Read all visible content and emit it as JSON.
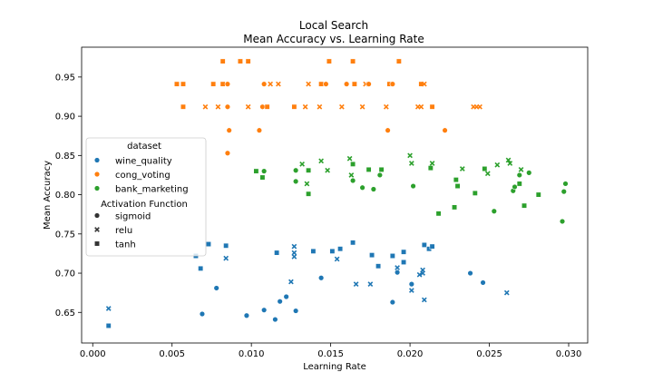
{
  "chart_data": {
    "type": "scatter",
    "title": "Local Search",
    "subtitle": "Mean Accuracy vs. Learning Rate",
    "xlabel": "Learning Rate",
    "ylabel": "Mean Accuracy",
    "xlim": [
      -0.0007,
      0.0312
    ],
    "ylim": [
      0.611,
      0.988
    ],
    "xticks": [
      0.0,
      0.005,
      0.01,
      0.015,
      0.02,
      0.025,
      0.03
    ],
    "xtick_labels": [
      "0.000",
      "0.005",
      "0.010",
      "0.015",
      "0.020",
      "0.025",
      "0.030"
    ],
    "yticks": [
      0.65,
      0.7,
      0.75,
      0.8,
      0.85,
      0.9,
      0.95
    ],
    "ytick_labels": [
      "0.65",
      "0.70",
      "0.75",
      "0.80",
      "0.85",
      "0.90",
      "0.95"
    ],
    "grid": false,
    "legend": {
      "placement": "center-left",
      "hue_title": "dataset",
      "hue_entries": [
        {
          "label": "wine_quality",
          "color": "#1f77b4"
        },
        {
          "label": "cong_voting",
          "color": "#ff7f0e"
        },
        {
          "label": "bank_marketing",
          "color": "#2ca02c"
        }
      ],
      "style_title": "Activation Function",
      "style_entries": [
        {
          "label": "sigmoid",
          "marker": "circle"
        },
        {
          "label": "relu",
          "marker": "x"
        },
        {
          "label": "tanh",
          "marker": "square"
        }
      ]
    },
    "series": [
      {
        "name": "wine_quality",
        "color": "#1f77b4",
        "points": [
          {
            "x": 0.001,
            "y": 0.633,
            "m": "tanh"
          },
          {
            "x": 0.001,
            "y": 0.655,
            "m": "relu"
          },
          {
            "x": 0.0065,
            "y": 0.722,
            "m": "tanh"
          },
          {
            "x": 0.0068,
            "y": 0.706,
            "m": "tanh"
          },
          {
            "x": 0.0069,
            "y": 0.648,
            "m": "sigmoid"
          },
          {
            "x": 0.0073,
            "y": 0.737,
            "m": "tanh"
          },
          {
            "x": 0.0078,
            "y": 0.681,
            "m": "sigmoid"
          },
          {
            "x": 0.0084,
            "y": 0.735,
            "m": "tanh"
          },
          {
            "x": 0.0084,
            "y": 0.719,
            "m": "relu"
          },
          {
            "x": 0.0097,
            "y": 0.646,
            "m": "sigmoid"
          },
          {
            "x": 0.0108,
            "y": 0.653,
            "m": "sigmoid"
          },
          {
            "x": 0.0115,
            "y": 0.641,
            "m": "sigmoid"
          },
          {
            "x": 0.0116,
            "y": 0.726,
            "m": "tanh"
          },
          {
            "x": 0.0118,
            "y": 0.664,
            "m": "sigmoid"
          },
          {
            "x": 0.0122,
            "y": 0.67,
            "m": "sigmoid"
          },
          {
            "x": 0.0125,
            "y": 0.689,
            "m": "relu"
          },
          {
            "x": 0.0127,
            "y": 0.734,
            "m": "relu"
          },
          {
            "x": 0.0127,
            "y": 0.726,
            "m": "relu"
          },
          {
            "x": 0.0127,
            "y": 0.721,
            "m": "relu"
          },
          {
            "x": 0.0128,
            "y": 0.652,
            "m": "sigmoid"
          },
          {
            "x": 0.0139,
            "y": 0.728,
            "m": "tanh"
          },
          {
            "x": 0.0144,
            "y": 0.694,
            "m": "sigmoid"
          },
          {
            "x": 0.0151,
            "y": 0.728,
            "m": "tanh"
          },
          {
            "x": 0.0154,
            "y": 0.718,
            "m": "relu"
          },
          {
            "x": 0.0156,
            "y": 0.731,
            "m": "tanh"
          },
          {
            "x": 0.0164,
            "y": 0.739,
            "m": "tanh"
          },
          {
            "x": 0.0166,
            "y": 0.686,
            "m": "relu"
          },
          {
            "x": 0.0175,
            "y": 0.686,
            "m": "relu"
          },
          {
            "x": 0.0176,
            "y": 0.723,
            "m": "tanh"
          },
          {
            "x": 0.018,
            "y": 0.709,
            "m": "tanh"
          },
          {
            "x": 0.0189,
            "y": 0.663,
            "m": "sigmoid"
          },
          {
            "x": 0.0189,
            "y": 0.722,
            "m": "tanh"
          },
          {
            "x": 0.0192,
            "y": 0.701,
            "m": "sigmoid"
          },
          {
            "x": 0.0192,
            "y": 0.707,
            "m": "relu"
          },
          {
            "x": 0.0196,
            "y": 0.727,
            "m": "tanh"
          },
          {
            "x": 0.0196,
            "y": 0.714,
            "m": "tanh"
          },
          {
            "x": 0.0201,
            "y": 0.686,
            "m": "sigmoid"
          },
          {
            "x": 0.0201,
            "y": 0.678,
            "m": "relu"
          },
          {
            "x": 0.0206,
            "y": 0.698,
            "m": "relu"
          },
          {
            "x": 0.0208,
            "y": 0.704,
            "m": "relu"
          },
          {
            "x": 0.0208,
            "y": 0.7,
            "m": "relu"
          },
          {
            "x": 0.0209,
            "y": 0.666,
            "m": "relu"
          },
          {
            "x": 0.0209,
            "y": 0.736,
            "m": "tanh"
          },
          {
            "x": 0.0212,
            "y": 0.731,
            "m": "tanh"
          },
          {
            "x": 0.0214,
            "y": 0.734,
            "m": "tanh"
          },
          {
            "x": 0.0238,
            "y": 0.7,
            "m": "sigmoid"
          },
          {
            "x": 0.0246,
            "y": 0.688,
            "m": "sigmoid"
          },
          {
            "x": 0.0261,
            "y": 0.675,
            "m": "relu"
          }
        ]
      },
      {
        "name": "cong_voting",
        "color": "#ff7f0e",
        "points": [
          {
            "x": 0.0053,
            "y": 0.941,
            "m": "tanh"
          },
          {
            "x": 0.0057,
            "y": 0.941,
            "m": "tanh"
          },
          {
            "x": 0.0057,
            "y": 0.912,
            "m": "tanh"
          },
          {
            "x": 0.0071,
            "y": 0.912,
            "m": "relu"
          },
          {
            "x": 0.0076,
            "y": 0.941,
            "m": "tanh"
          },
          {
            "x": 0.0079,
            "y": 0.912,
            "m": "relu"
          },
          {
            "x": 0.0082,
            "y": 0.97,
            "m": "tanh"
          },
          {
            "x": 0.0082,
            "y": 0.941,
            "m": "tanh"
          },
          {
            "x": 0.0085,
            "y": 0.941,
            "m": "sigmoid"
          },
          {
            "x": 0.0085,
            "y": 0.912,
            "m": "sigmoid"
          },
          {
            "x": 0.0086,
            "y": 0.882,
            "m": "sigmoid"
          },
          {
            "x": 0.0085,
            "y": 0.853,
            "m": "sigmoid"
          },
          {
            "x": 0.0093,
            "y": 0.97,
            "m": "tanh"
          },
          {
            "x": 0.0098,
            "y": 0.97,
            "m": "tanh"
          },
          {
            "x": 0.0098,
            "y": 0.912,
            "m": "relu"
          },
          {
            "x": 0.0105,
            "y": 0.882,
            "m": "sigmoid"
          },
          {
            "x": 0.0107,
            "y": 0.912,
            "m": "sigmoid"
          },
          {
            "x": 0.0108,
            "y": 0.941,
            "m": "sigmoid"
          },
          {
            "x": 0.011,
            "y": 0.912,
            "m": "tanh"
          },
          {
            "x": 0.0112,
            "y": 0.941,
            "m": "relu"
          },
          {
            "x": 0.0117,
            "y": 0.941,
            "m": "relu"
          },
          {
            "x": 0.0127,
            "y": 0.912,
            "m": "tanh"
          },
          {
            "x": 0.0134,
            "y": 0.912,
            "m": "relu"
          },
          {
            "x": 0.0136,
            "y": 0.941,
            "m": "relu"
          },
          {
            "x": 0.0143,
            "y": 0.912,
            "m": "relu"
          },
          {
            "x": 0.0144,
            "y": 0.941,
            "m": "tanh"
          },
          {
            "x": 0.0147,
            "y": 0.941,
            "m": "sigmoid"
          },
          {
            "x": 0.0149,
            "y": 0.97,
            "m": "tanh"
          },
          {
            "x": 0.0157,
            "y": 0.912,
            "m": "relu"
          },
          {
            "x": 0.016,
            "y": 0.941,
            "m": "sigmoid"
          },
          {
            "x": 0.0164,
            "y": 0.97,
            "m": "tanh"
          },
          {
            "x": 0.0165,
            "y": 0.941,
            "m": "tanh"
          },
          {
            "x": 0.017,
            "y": 0.912,
            "m": "relu"
          },
          {
            "x": 0.0172,
            "y": 0.941,
            "m": "relu"
          },
          {
            "x": 0.0174,
            "y": 0.941,
            "m": "sigmoid"
          },
          {
            "x": 0.0185,
            "y": 0.912,
            "m": "relu"
          },
          {
            "x": 0.0186,
            "y": 0.882,
            "m": "sigmoid"
          },
          {
            "x": 0.0187,
            "y": 0.941,
            "m": "tanh"
          },
          {
            "x": 0.0189,
            "y": 0.941,
            "m": "sigmoid"
          },
          {
            "x": 0.0193,
            "y": 0.97,
            "m": "tanh"
          },
          {
            "x": 0.0205,
            "y": 0.912,
            "m": "relu"
          },
          {
            "x": 0.0207,
            "y": 0.912,
            "m": "relu"
          },
          {
            "x": 0.0207,
            "y": 0.941,
            "m": "tanh"
          },
          {
            "x": 0.0209,
            "y": 0.941,
            "m": "relu"
          },
          {
            "x": 0.0214,
            "y": 0.912,
            "m": "tanh"
          },
          {
            "x": 0.0222,
            "y": 0.882,
            "m": "sigmoid"
          },
          {
            "x": 0.024,
            "y": 0.912,
            "m": "relu"
          },
          {
            "x": 0.0242,
            "y": 0.912,
            "m": "relu"
          },
          {
            "x": 0.0244,
            "y": 0.912,
            "m": "relu"
          }
        ]
      },
      {
        "name": "bank_marketing",
        "color": "#2ca02c",
        "points": [
          {
            "x": 0.0103,
            "y": 0.83,
            "m": "tanh"
          },
          {
            "x": 0.0107,
            "y": 0.822,
            "m": "tanh"
          },
          {
            "x": 0.0108,
            "y": 0.83,
            "m": "sigmoid"
          },
          {
            "x": 0.0128,
            "y": 0.831,
            "m": "sigmoid"
          },
          {
            "x": 0.0128,
            "y": 0.817,
            "m": "sigmoid"
          },
          {
            "x": 0.0132,
            "y": 0.839,
            "m": "relu"
          },
          {
            "x": 0.0135,
            "y": 0.814,
            "m": "relu"
          },
          {
            "x": 0.0136,
            "y": 0.831,
            "m": "tanh"
          },
          {
            "x": 0.0136,
            "y": 0.801,
            "m": "tanh"
          },
          {
            "x": 0.0144,
            "y": 0.843,
            "m": "relu"
          },
          {
            "x": 0.0148,
            "y": 0.831,
            "m": "relu"
          },
          {
            "x": 0.0162,
            "y": 0.846,
            "m": "relu"
          },
          {
            "x": 0.0163,
            "y": 0.825,
            "m": "relu"
          },
          {
            "x": 0.0164,
            "y": 0.839,
            "m": "tanh"
          },
          {
            "x": 0.0164,
            "y": 0.818,
            "m": "sigmoid"
          },
          {
            "x": 0.017,
            "y": 0.809,
            "m": "sigmoid"
          },
          {
            "x": 0.0174,
            "y": 0.832,
            "m": "tanh"
          },
          {
            "x": 0.0177,
            "y": 0.807,
            "m": "sigmoid"
          },
          {
            "x": 0.0181,
            "y": 0.825,
            "m": "sigmoid"
          },
          {
            "x": 0.0182,
            "y": 0.832,
            "m": "tanh"
          },
          {
            "x": 0.02,
            "y": 0.85,
            "m": "relu"
          },
          {
            "x": 0.0201,
            "y": 0.84,
            "m": "relu"
          },
          {
            "x": 0.0202,
            "y": 0.811,
            "m": "sigmoid"
          },
          {
            "x": 0.0213,
            "y": 0.834,
            "m": "tanh"
          },
          {
            "x": 0.0214,
            "y": 0.84,
            "m": "relu"
          },
          {
            "x": 0.0218,
            "y": 0.776,
            "m": "tanh"
          },
          {
            "x": 0.0228,
            "y": 0.784,
            "m": "tanh"
          },
          {
            "x": 0.0229,
            "y": 0.819,
            "m": "tanh"
          },
          {
            "x": 0.023,
            "y": 0.811,
            "m": "tanh"
          },
          {
            "x": 0.0233,
            "y": 0.833,
            "m": "relu"
          },
          {
            "x": 0.0241,
            "y": 0.802,
            "m": "tanh"
          },
          {
            "x": 0.0247,
            "y": 0.833,
            "m": "tanh"
          },
          {
            "x": 0.0249,
            "y": 0.827,
            "m": "relu"
          },
          {
            "x": 0.0253,
            "y": 0.779,
            "m": "sigmoid"
          },
          {
            "x": 0.0255,
            "y": 0.838,
            "m": "relu"
          },
          {
            "x": 0.0262,
            "y": 0.844,
            "m": "relu"
          },
          {
            "x": 0.0263,
            "y": 0.84,
            "m": "relu"
          },
          {
            "x": 0.0265,
            "y": 0.805,
            "m": "sigmoid"
          },
          {
            "x": 0.0266,
            "y": 0.81,
            "m": "sigmoid"
          },
          {
            "x": 0.0269,
            "y": 0.814,
            "m": "tanh"
          },
          {
            "x": 0.0269,
            "y": 0.825,
            "m": "sigmoid"
          },
          {
            "x": 0.027,
            "y": 0.832,
            "m": "relu"
          },
          {
            "x": 0.0272,
            "y": 0.786,
            "m": "tanh"
          },
          {
            "x": 0.0275,
            "y": 0.828,
            "m": "sigmoid"
          },
          {
            "x": 0.0281,
            "y": 0.8,
            "m": "tanh"
          },
          {
            "x": 0.0296,
            "y": 0.766,
            "m": "sigmoid"
          },
          {
            "x": 0.0297,
            "y": 0.804,
            "m": "sigmoid"
          },
          {
            "x": 0.0298,
            "y": 0.814,
            "m": "sigmoid"
          }
        ]
      }
    ]
  }
}
